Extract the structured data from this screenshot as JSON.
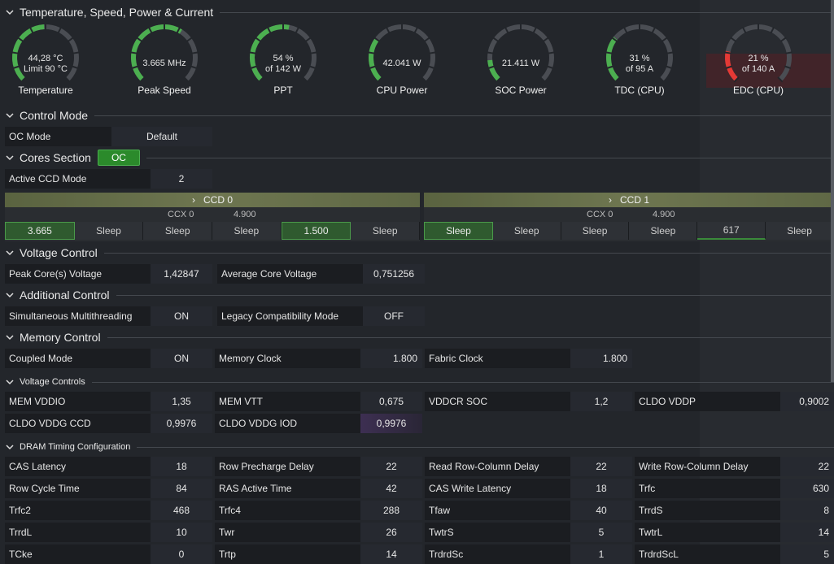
{
  "sections": {
    "temp_speed": "Temperature, Speed, Power & Current",
    "control_mode": "Control Mode",
    "cores": "Cores Section",
    "voltage_control": "Voltage Control",
    "additional_control": "Additional Control",
    "memory_control": "Memory Control",
    "voltage_controls": "Voltage Controls",
    "dram_timing": "DRAM Timing Configuration"
  },
  "gauges": [
    {
      "line1": "44,28 °C",
      "line2": "Limit 90 °C",
      "label": "Temperature",
      "fraction": 0.49,
      "color": "#4caf50"
    },
    {
      "line1": "3.665  MHz",
      "line2": "",
      "label": "Peak Speed",
      "fraction": 0.62,
      "color": "#4caf50"
    },
    {
      "line1": "54 %",
      "line2": "of 142 W",
      "label": "PPT",
      "fraction": 0.54,
      "color": "#4caf50"
    },
    {
      "line1": "42.041  W",
      "line2": "",
      "label": "CPU Power",
      "fraction": 0.3,
      "color": "#4caf50"
    },
    {
      "line1": "21.411  W",
      "line2": "",
      "label": "SOC Power",
      "fraction": 0.15,
      "color": "#4caf50"
    },
    {
      "line1": "31 %",
      "line2": "of 95 A",
      "label": "TDC (CPU)",
      "fraction": 0.31,
      "color": "#4caf50"
    },
    {
      "line1": "21 %",
      "line2": "of 140 A",
      "label": "EDC (CPU)",
      "fraction": 0.21,
      "color": "#e53935"
    }
  ],
  "control_mode": {
    "key": "OC Mode",
    "value": "Default"
  },
  "cores_badge": "OC",
  "active_ccd": {
    "key": "Active CCD Mode",
    "value": "2"
  },
  "ccds": [
    {
      "name": "CCD 0",
      "ccx": "CCX 0",
      "ccx_freq": "4.900",
      "cores": [
        {
          "v": "3.665",
          "active": true
        },
        {
          "v": "Sleep"
        },
        {
          "v": "Sleep"
        },
        {
          "v": "Sleep"
        },
        {
          "v": "1.500",
          "active": true
        },
        {
          "v": "Sleep"
        }
      ]
    },
    {
      "name": "CCD 1",
      "ccx": "CCX 0",
      "ccx_freq": "4.900",
      "cores": [
        {
          "v": "Sleep",
          "active": true
        },
        {
          "v": "Sleep"
        },
        {
          "v": "Sleep"
        },
        {
          "v": "Sleep"
        },
        {
          "v": "617",
          "barred": true
        },
        {
          "v": "Sleep"
        }
      ]
    }
  ],
  "voltage": [
    {
      "key": "Peak Core(s) Voltage",
      "value": "1,42847"
    },
    {
      "key": "Average Core Voltage",
      "value": "0,751256"
    }
  ],
  "additional": [
    {
      "key": "Simultaneous Multithreading",
      "value": "ON"
    },
    {
      "key": "Legacy Compatibility Mode",
      "value": "OFF"
    }
  ],
  "memory": [
    {
      "key": "Coupled Mode",
      "value": "ON"
    },
    {
      "key": "Memory Clock",
      "value": "1.800"
    },
    {
      "key": "Fabric Clock",
      "value": "1.800"
    }
  ],
  "voltage_controls": [
    [
      {
        "key": "MEM VDDIO",
        "value": "1,35"
      },
      {
        "key": "MEM VTT",
        "value": "0,675"
      },
      {
        "key": "VDDCR SOC",
        "value": "1,2"
      },
      {
        "key": "CLDO VDDP",
        "value": "0,9002"
      }
    ],
    [
      {
        "key": "CLDO VDDG CCD",
        "value": "0,9976"
      },
      {
        "key": "CLDO VDDG IOD",
        "value": "0,9976"
      }
    ]
  ],
  "dram": [
    [
      {
        "key": "CAS Latency",
        "value": "18"
      },
      {
        "key": "Row Precharge Delay",
        "value": "22"
      },
      {
        "key": "Read Row-Column Delay",
        "value": "22"
      },
      {
        "key": "Write Row-Column Delay",
        "value": "22"
      }
    ],
    [
      {
        "key": "Row Cycle Time",
        "value": "84"
      },
      {
        "key": "RAS Active Time",
        "value": "42"
      },
      {
        "key": "CAS Write Latency",
        "value": "18"
      },
      {
        "key": "Trfc",
        "value": "630"
      }
    ],
    [
      {
        "key": "Trfc2",
        "value": "468"
      },
      {
        "key": "Trfc4",
        "value": "288"
      },
      {
        "key": "Tfaw",
        "value": "40"
      },
      {
        "key": "TrrdS",
        "value": "8"
      }
    ],
    [
      {
        "key": "TrrdL",
        "value": "10"
      },
      {
        "key": "Twr",
        "value": "26"
      },
      {
        "key": "TwtrS",
        "value": "5"
      },
      {
        "key": "TwtrL",
        "value": "14"
      }
    ],
    [
      {
        "key": "TCke",
        "value": "0"
      },
      {
        "key": "Trtp",
        "value": "14"
      },
      {
        "key": "TrdrdSc",
        "value": "1"
      },
      {
        "key": "TrdrdScL",
        "value": "5"
      }
    ]
  ]
}
